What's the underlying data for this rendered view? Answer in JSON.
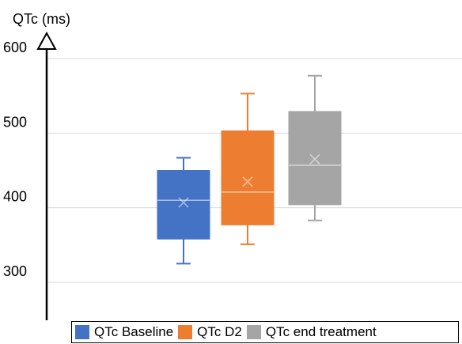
{
  "chart_data": {
    "type": "box",
    "ylabel": "QTc (ms)",
    "yticks": [
      300,
      400,
      500,
      600
    ],
    "ylim": [
      300,
      605
    ],
    "grid": true,
    "legend_position": "bottom",
    "series": [
      {
        "name": "QTc Baseline",
        "color": "#4472c4",
        "min": 325,
        "q1": 358,
        "median": 410,
        "q3": 450,
        "max": 467,
        "mean": 407
      },
      {
        "name": "QTc D2",
        "color": "#ed7d31",
        "min": 351,
        "q1": 377,
        "median": 421,
        "q3": 503,
        "max": 553,
        "mean": 435
      },
      {
        "name": "QTc end treatment",
        "color": "#a5a5a5",
        "min": 383,
        "q1": 404,
        "median": 457,
        "q3": 529,
        "max": 577,
        "mean": 465
      }
    ]
  }
}
